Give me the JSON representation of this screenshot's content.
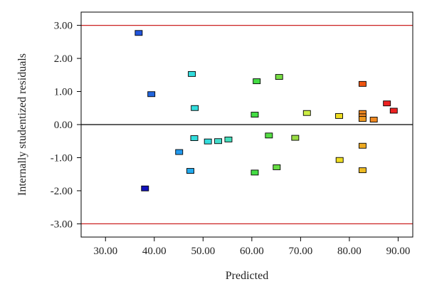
{
  "chart_data": {
    "type": "scatter",
    "xlabel": "Predicted",
    "ylabel": "Internally studentized residuals",
    "xlim": [
      25,
      93
    ],
    "ylim": [
      -3.4,
      3.4
    ],
    "x_ticks": [
      30,
      40,
      50,
      60,
      70,
      80,
      90
    ],
    "x_tick_labels": [
      "30.00",
      "40.00",
      "50.00",
      "60.00",
      "70.00",
      "80.00",
      "90.00"
    ],
    "y_ticks": [
      3,
      2,
      1,
      0,
      -1,
      -2,
      -3
    ],
    "y_tick_labels": [
      "3.00",
      "2.00",
      "1.00",
      "0.00",
      "-1.00",
      "-2.00",
      "-3.00"
    ],
    "reference_lines": [
      {
        "y": 3,
        "color": "#cc2222"
      },
      {
        "y": -3,
        "color": "#cc2222"
      },
      {
        "y": 0,
        "color": "#000000"
      }
    ],
    "points": [
      {
        "x": 36.8,
        "y": 2.77,
        "color": "#2255dd"
      },
      {
        "x": 39.4,
        "y": 0.92,
        "color": "#2266dd"
      },
      {
        "x": 38.1,
        "y": -1.93,
        "color": "#1111bb"
      },
      {
        "x": 45.1,
        "y": -0.83,
        "color": "#2299ee"
      },
      {
        "x": 47.4,
        "y": -1.4,
        "color": "#22aaee"
      },
      {
        "x": 47.7,
        "y": 1.53,
        "color": "#33dddd"
      },
      {
        "x": 48.3,
        "y": 0.5,
        "color": "#33dddd"
      },
      {
        "x": 48.2,
        "y": -0.41,
        "color": "#33dddd"
      },
      {
        "x": 51.0,
        "y": -0.51,
        "color": "#33dddd"
      },
      {
        "x": 53.1,
        "y": -0.5,
        "color": "#44ddcc"
      },
      {
        "x": 55.2,
        "y": -0.45,
        "color": "#44ddbb"
      },
      {
        "x": 60.6,
        "y": 0.3,
        "color": "#44dd44"
      },
      {
        "x": 60.6,
        "y": -1.45,
        "color": "#44dd44"
      },
      {
        "x": 61.0,
        "y": 1.31,
        "color": "#44dd44"
      },
      {
        "x": 63.5,
        "y": -0.33,
        "color": "#55dd44"
      },
      {
        "x": 65.1,
        "y": -1.29,
        "color": "#66dd44"
      },
      {
        "x": 65.6,
        "y": 1.44,
        "color": "#77dd44"
      },
      {
        "x": 68.9,
        "y": -0.4,
        "color": "#99dd44"
      },
      {
        "x": 71.3,
        "y": 0.35,
        "color": "#ccee44"
      },
      {
        "x": 77.9,
        "y": 0.26,
        "color": "#eedd22"
      },
      {
        "x": 78.0,
        "y": -1.07,
        "color": "#eedd22"
      },
      {
        "x": 82.7,
        "y": 1.23,
        "color": "#ee5511"
      },
      {
        "x": 82.7,
        "y": 0.35,
        "color": "#ee8822"
      },
      {
        "x": 82.7,
        "y": 0.25,
        "color": "#ee8822"
      },
      {
        "x": 82.7,
        "y": 0.17,
        "color": "#ee9922"
      },
      {
        "x": 82.7,
        "y": -0.64,
        "color": "#eeaa22"
      },
      {
        "x": 82.7,
        "y": -1.38,
        "color": "#eebb22"
      },
      {
        "x": 85.0,
        "y": 0.15,
        "color": "#ee8822"
      },
      {
        "x": 87.7,
        "y": 0.64,
        "color": "#ee2222"
      },
      {
        "x": 89.1,
        "y": 0.42,
        "color": "#ee2222"
      }
    ]
  }
}
